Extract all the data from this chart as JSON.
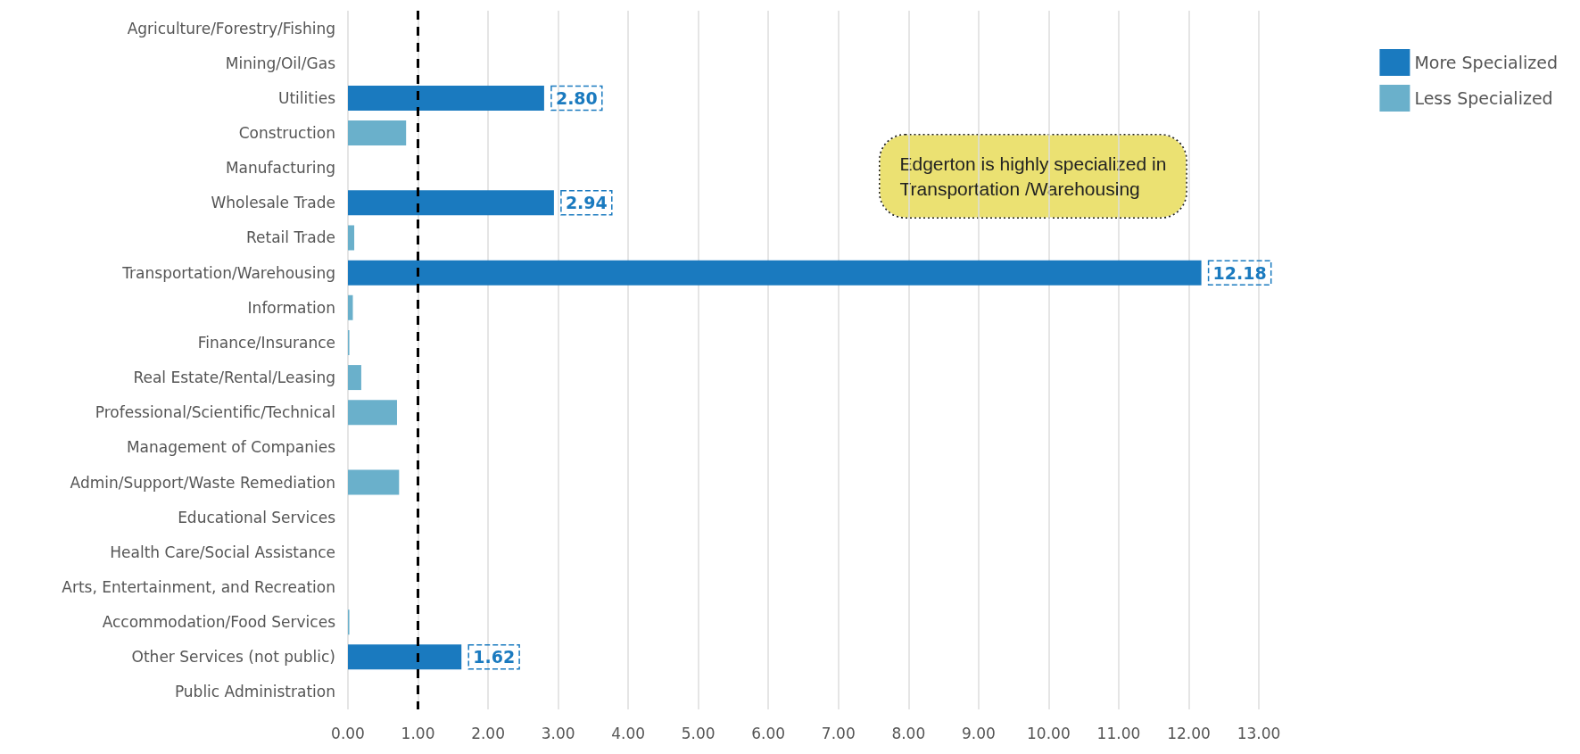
{
  "chart_data": {
    "type": "bar",
    "orientation": "horizontal",
    "stacked": true,
    "categories": [
      "Agriculture/Forestry/Fishing",
      "Mining/Oil/Gas",
      "Utilities",
      "Construction",
      "Manufacturing",
      "Wholesale Trade",
      "Retail Trade",
      "Transportation/Warehousing",
      "Information",
      "Finance/Insurance",
      "Real Estate/Rental/Leasing",
      "Professional/Scientific/Technical",
      "Management of Companies",
      "Admin/Support/Waste Remediation",
      "Educational Services",
      "Health Care/Social Assistance",
      "Arts, Entertainment, and Recreation",
      "Accommodation/Food Services",
      "Other Services (not public)",
      "Public Administration"
    ],
    "series": [
      {
        "name": "More Specialized",
        "color": "#1a7abf",
        "values": [
          null,
          null,
          2.8,
          null,
          null,
          2.94,
          null,
          12.18,
          null,
          null,
          null,
          null,
          null,
          null,
          null,
          null,
          null,
          null,
          1.62,
          null
        ],
        "value_labels": [
          null,
          null,
          "2.80",
          null,
          null,
          "2.94",
          null,
          "12.18",
          null,
          null,
          null,
          null,
          null,
          null,
          null,
          null,
          null,
          null,
          "1.62",
          null
        ]
      },
      {
        "name": "Less Specialized",
        "color": "#6ab0cb",
        "values": [
          0,
          0,
          null,
          0.83,
          0,
          null,
          0.09,
          null,
          0.07,
          0.02,
          0.19,
          0.7,
          0,
          0.73,
          0,
          0,
          0,
          0.02,
          null,
          0
        ]
      }
    ],
    "xlim": [
      0,
      13
    ],
    "xticks": [
      {
        "value": 0,
        "label": "0.00"
      },
      {
        "value": 1,
        "label": "1.00"
      },
      {
        "value": 2,
        "label": "2.00"
      },
      {
        "value": 3,
        "label": "3.00"
      },
      {
        "value": 4,
        "label": "4.00"
      },
      {
        "value": 5,
        "label": "5.00"
      },
      {
        "value": 6,
        "label": "6.00"
      },
      {
        "value": 7,
        "label": "7.00"
      },
      {
        "value": 8,
        "label": "8.00"
      },
      {
        "value": 9,
        "label": "9.00"
      },
      {
        "value": 10,
        "label": "10.00"
      },
      {
        "value": 11,
        "label": "11.00"
      },
      {
        "value": 12,
        "label": "12.00"
      },
      {
        "value": 13,
        "label": "13.00"
      }
    ],
    "grid": "x",
    "legend": "top right",
    "ref_lines": [
      {
        "axis": "x",
        "value": 1,
        "color": "#000000",
        "line_style": "dashed"
      }
    ],
    "annotations": [
      "Edgerton is highly specialized in\nTransportation /Warehousing"
    ]
  }
}
